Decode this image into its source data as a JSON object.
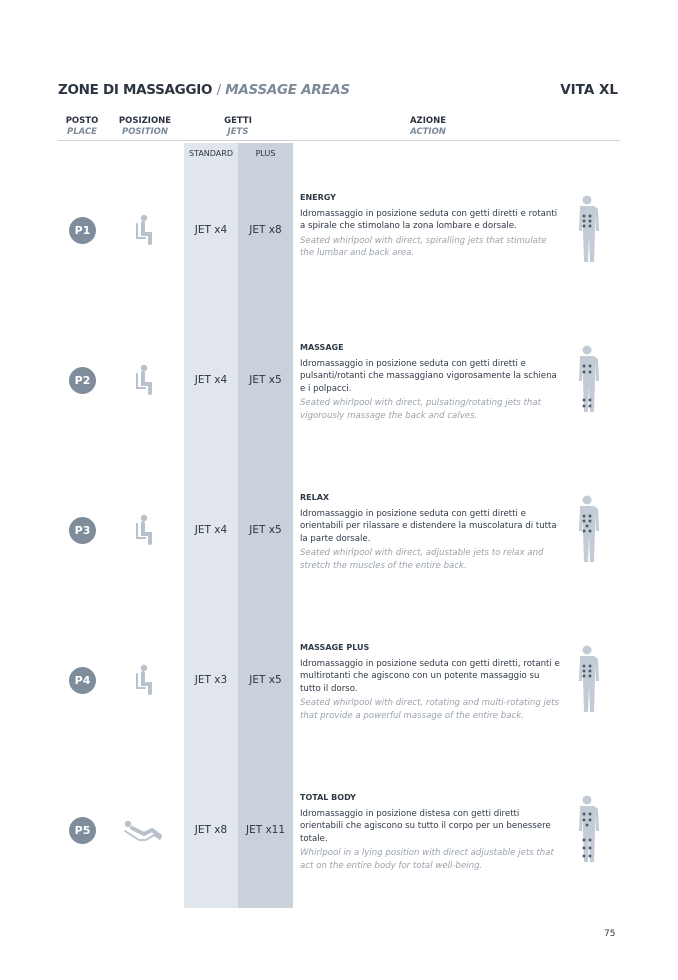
{
  "header": {
    "title_it": "ZONE DI MASSAGGIO",
    "separator": "/",
    "title_en": "MASSAGE AREAS",
    "model": "VITA XL"
  },
  "columns": {
    "place": {
      "it": "POSTO",
      "en": "PLACE"
    },
    "position": {
      "it": "POSIZIONE",
      "en": "POSITION"
    },
    "jets": {
      "it": "GETTI",
      "en": "JETS",
      "standard": "STANDARD",
      "plus": "PLUS"
    },
    "action": {
      "it": "AZIONE",
      "en": "ACTION"
    }
  },
  "colors": {
    "standard_col": "#e1e6ed",
    "plus_col": "#c9d1db",
    "badge": "#7f8c9b"
  },
  "rows": [
    {
      "place": "P1",
      "position_icon": "seated-icon",
      "standard": "JET x4",
      "plus": "JET x8",
      "name": "ENERGY",
      "it": "Idromassaggio in posizione seduta con getti diretti e rotanti a spirale che stimolano la zona lombare e dorsale.",
      "en": "Seated whirlpool with direct, spiralling jets that stimulate the lumbar and back area."
    },
    {
      "place": "P2",
      "position_icon": "seated-icon",
      "standard": "JET x4",
      "plus": "JET x5",
      "name": "MASSAGE",
      "it": "Idromassaggio in posizione seduta con getti diretti e pulsanti/rotanti che  massaggiano vigorosamente la schiena e i polpacci.",
      "en": "Seated whirlpool with direct, pulsating/rotating jets that vigorously massage the back and calves."
    },
    {
      "place": "P3",
      "position_icon": "seated-icon",
      "standard": "JET x4",
      "plus": "JET x5",
      "name": "RELAX",
      "it": "Idromassaggio in posizione seduta con getti diretti e orientabili per rilassare e distendere la muscolatura di tutta la parte dorsale.",
      "en": "Seated whirlpool with direct, adjustable jets to relax and stretch the muscles of the entire back."
    },
    {
      "place": "P4",
      "position_icon": "seated-icon",
      "standard": "JET x3",
      "plus": "JET x5",
      "name": "MASSAGE PLUS",
      "it": "Idromassaggio in posizione seduta con getti diretti, rotanti e multirotanti che agiscono con un potente massaggio su tutto il dorso.",
      "en": "Seated whirlpool with direct, rotating and multi-rotating jets that provide a powerful massage of the entire back."
    },
    {
      "place": "P5",
      "position_icon": "lying-icon",
      "standard": "JET x8",
      "plus": "JET x11",
      "name": "TOTAL BODY",
      "it": "Idromassaggio in posizione distesa con getti diretti orientabili che agiscono su tutto il corpo per un benessere totale.",
      "en": "Whirlpool in a lying position with direct adjustable jets that act on the entire body for total well-being."
    }
  ],
  "page_number": "75"
}
